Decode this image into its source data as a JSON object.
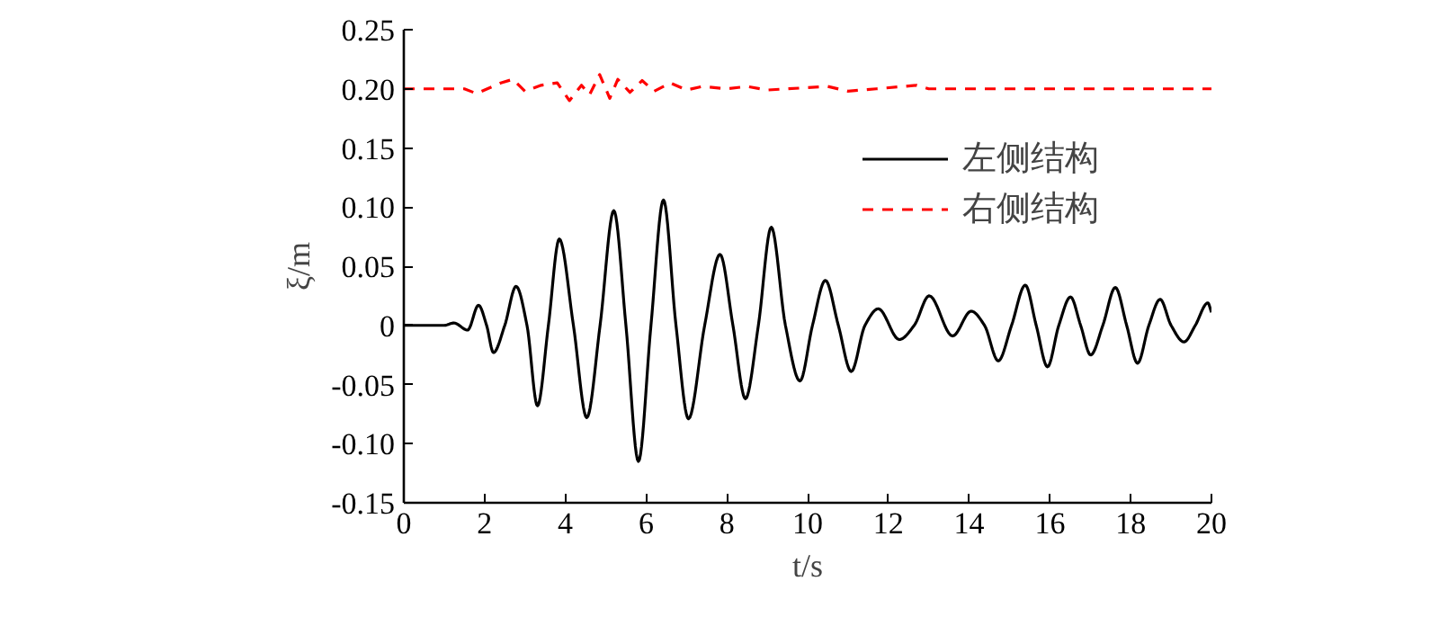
{
  "chart_data": {
    "type": "line",
    "xlabel": "t/s",
    "ylabel": "ξ/m",
    "xlim": [
      0,
      20
    ],
    "xticks": [
      0,
      2,
      4,
      6,
      8,
      10,
      12,
      14,
      16,
      18,
      20
    ],
    "ylim": [
      -0.15,
      0.25
    ],
    "yticks": [
      -0.15,
      {
        "value": -0.1,
        "label": "-0.10"
      },
      -0.05,
      0,
      0.05,
      {
        "value": 0.1,
        "label": "0.10"
      },
      0.15,
      {
        "value": 0.2,
        "label": "0.20"
      },
      0.25
    ],
    "grid": false,
    "legend": "right",
    "marker": "none",
    "series": [
      {
        "name": "左侧结构",
        "color": "#000000",
        "line_style": "solid",
        "x": [
          0,
          1.0,
          1.24,
          1.58,
          1.85,
          2.05,
          2.22,
          2.5,
          2.78,
          3.05,
          3.31,
          3.58,
          3.85,
          4.2,
          4.53,
          4.86,
          5.2,
          5.5,
          5.81,
          6.12,
          6.43,
          6.74,
          7.05,
          7.45,
          7.83,
          8.15,
          8.46,
          8.78,
          9.1,
          9.45,
          9.81,
          10.12,
          10.44,
          10.76,
          11.08,
          11.42,
          11.75,
          12.27,
          12.64,
          13.01,
          13.59,
          14.05,
          14.38,
          14.72,
          15.05,
          15.39,
          15.66,
          15.94,
          16.22,
          16.51,
          16.76,
          17.01,
          17.31,
          17.62,
          17.9,
          18.17,
          18.45,
          18.73,
          19.0,
          19.32,
          19.6,
          19.91,
          20
        ],
        "values": [
          0,
          0,
          0.002,
          -0.004,
          0.017,
          0,
          -0.023,
          0,
          0.033,
          0,
          -0.068,
          0,
          0.073,
          0,
          -0.078,
          0,
          0.097,
          0,
          -0.115,
          0,
          0.106,
          0,
          -0.079,
          0,
          0.06,
          0,
          -0.062,
          0,
          0.083,
          0,
          -0.047,
          0,
          0.038,
          0,
          -0.039,
          0,
          0.014,
          -0.012,
          0,
          0.025,
          -0.009,
          0.012,
          0,
          -0.03,
          0,
          0.034,
          0,
          -0.035,
          0,
          0.024,
          0,
          -0.025,
          0,
          0.032,
          0,
          -0.032,
          0,
          0.022,
          0,
          -0.014,
          0,
          0.019,
          0.011
        ]
      },
      {
        "name": "右侧结构",
        "color": "#ff0000",
        "line_style": "dashed",
        "x": [
          0,
          1.5,
          1.8,
          2.4,
          2.7,
          3.0,
          3.4,
          3.8,
          4.1,
          4.4,
          4.6,
          4.85,
          5.1,
          5.3,
          5.6,
          5.9,
          6.2,
          6.6,
          7.0,
          7.4,
          8.0,
          8.5,
          9.0,
          10.5,
          11.0,
          11.7,
          12.7,
          13.0,
          20
        ],
        "values": [
          0.2,
          0.2,
          0.196,
          0.205,
          0.208,
          0.198,
          0.203,
          0.205,
          0.19,
          0.203,
          0.195,
          0.212,
          0.192,
          0.208,
          0.197,
          0.207,
          0.198,
          0.205,
          0.199,
          0.202,
          0.2,
          0.202,
          0.199,
          0.202,
          0.198,
          0.2,
          0.203,
          0.2,
          0.2
        ]
      }
    ]
  }
}
